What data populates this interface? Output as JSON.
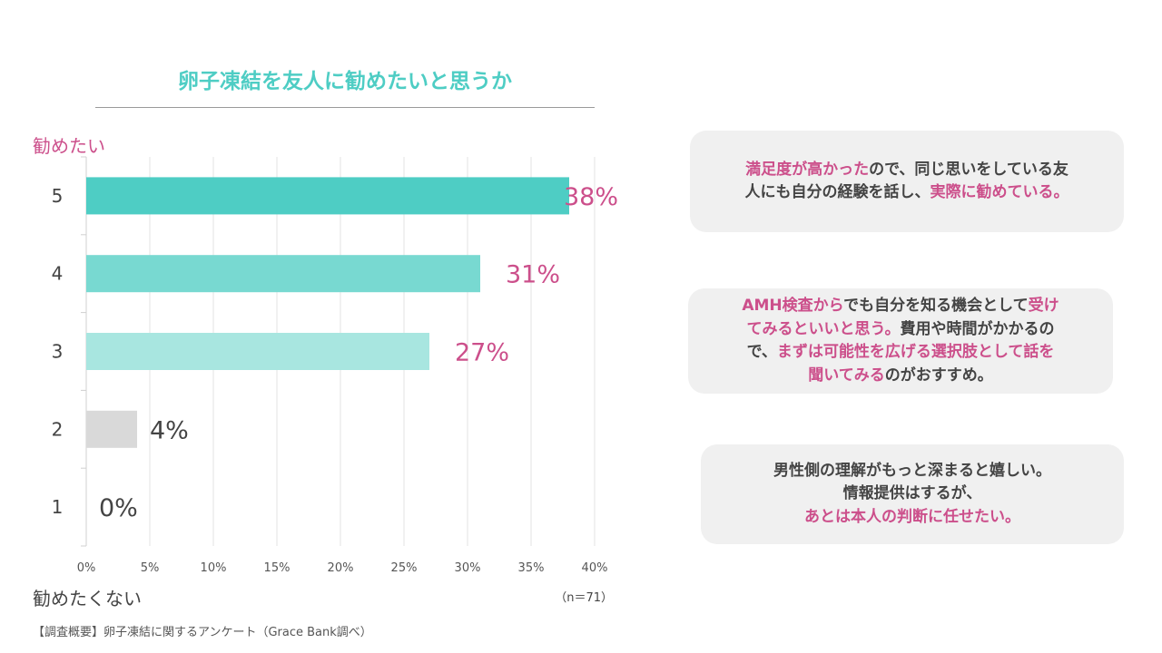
{
  "chart_data": {
    "type": "bar",
    "orientation": "horizontal",
    "title": "卵子凍結を友人に勧めたいと思うか",
    "categories": [
      "5",
      "4",
      "3",
      "2",
      "1"
    ],
    "values": [
      38,
      31,
      27,
      4,
      0
    ],
    "value_labels": [
      "38%",
      "31%",
      "27%",
      "4%",
      "0%"
    ],
    "colors": [
      "#4ecdc4",
      "#78d9d1",
      "#a8e6e0",
      "#d9d9d9",
      "#d9d9d9"
    ],
    "label_colors": [
      "#cc4f8b",
      "#cc4f8b",
      "#cc4f8b",
      "#444444",
      "#444444"
    ],
    "xlim": [
      0,
      40
    ],
    "xticks": [
      "0%",
      "5%",
      "10%",
      "15%",
      "20%",
      "25%",
      "30%",
      "35%",
      "40%"
    ],
    "ylabel_top": "勧めたい",
    "ylabel_bottom": "勧めたくない",
    "n_label": "（n＝71）",
    "grid": true
  },
  "footnote": "【調査概要】卵子凍結に関するアンケート（Grace Bank調べ）",
  "comments": [
    {
      "lines": [
        [
          {
            "text": "満足度が高かった",
            "pink": true
          },
          {
            "text": "ので、同じ思いをしている友",
            "pink": false
          }
        ],
        [
          {
            "text": "人にも自分の経験を話し、",
            "pink": false
          },
          {
            "text": "実際に勧めている。",
            "pink": true
          }
        ]
      ]
    },
    {
      "lines": [
        [
          {
            "text": "AMH検査から",
            "pink": true
          },
          {
            "text": "でも自分を知る機会として",
            "pink": false
          },
          {
            "text": "受け",
            "pink": true
          }
        ],
        [
          {
            "text": "てみるといいと思う。",
            "pink": true
          },
          {
            "text": "費用や時間がかかるの",
            "pink": false
          }
        ],
        [
          {
            "text": "で、",
            "pink": false
          },
          {
            "text": "まずは可能性を広げる選択肢として話を",
            "pink": true
          }
        ],
        [
          {
            "text": "聞いてみる",
            "pink": true
          },
          {
            "text": "のがおすすめ。",
            "pink": false
          }
        ]
      ]
    },
    {
      "lines": [
        [
          {
            "text": "男性側の理解がもっと深まると嬉しい。",
            "pink": false
          }
        ],
        [
          {
            "text": "情報提供はするが、",
            "pink": false
          }
        ],
        [
          {
            "text": "あとは本人の判断に任せたい。",
            "pink": true
          },
          {
            "text": "",
            "pink": false
          }
        ]
      ]
    }
  ],
  "colors": {
    "accent_teal": "#4ecdc4",
    "accent_pink": "#cc4f8b",
    "bubble_bg": "#f0f0f0"
  }
}
